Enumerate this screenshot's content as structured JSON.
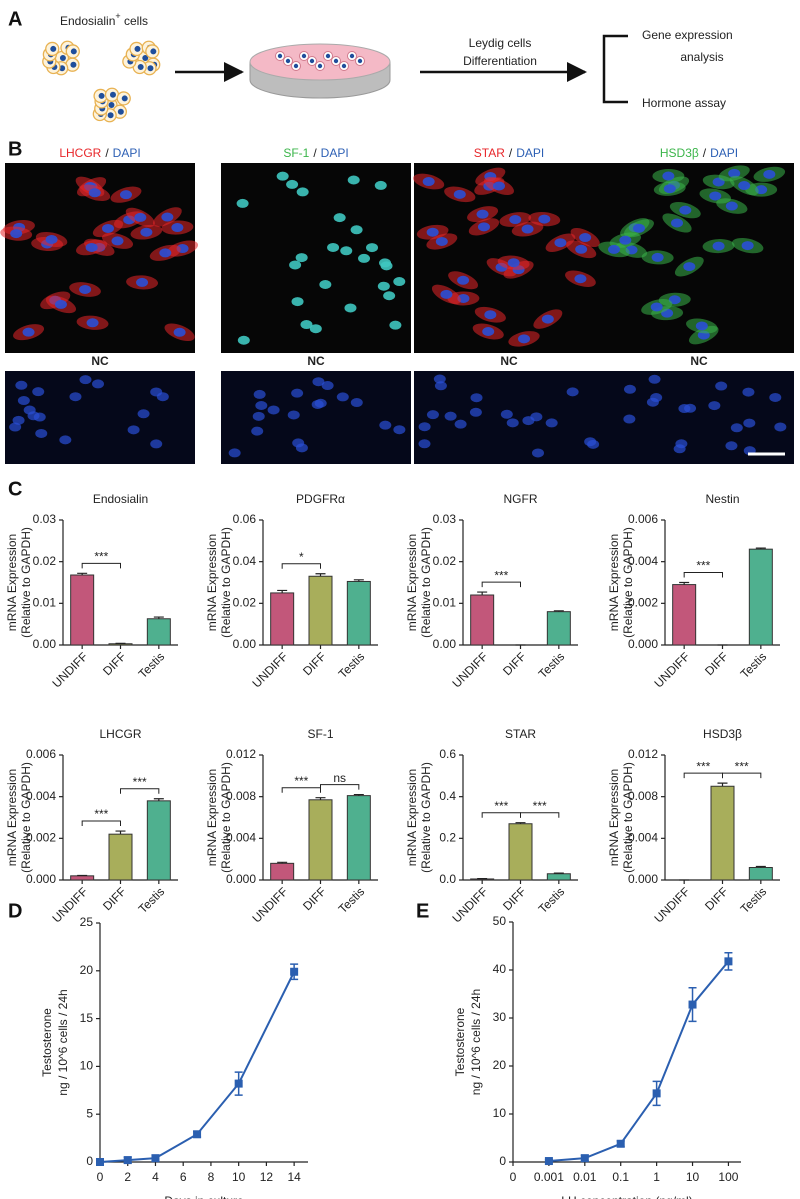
{
  "panel_labels": [
    "A",
    "B",
    "C",
    "D",
    "E"
  ],
  "diagram": {
    "source": {
      "text": "Endosialin",
      "sup": "+",
      "rest": " cells"
    },
    "arrow_label": [
      "Leydig cells",
      "Differentiation"
    ],
    "outputs": [
      [
        "Gene expression",
        "analysis"
      ],
      [
        "Hormone assay"
      ]
    ]
  },
  "images": {
    "separator": "/",
    "stain": {
      "name": "DAPI",
      "color": "#2c5fb4"
    },
    "markers": [
      {
        "name": "LHCGR",
        "color": "#e8262a"
      },
      {
        "name": "SF-1",
        "color": "#3bb54a"
      },
      {
        "name": "STAR",
        "color": "#e8262a"
      },
      {
        "name": "HSD3β",
        "color": "#3bb54a"
      }
    ],
    "control_labels": [
      "NC",
      "NC",
      "NC",
      "NC"
    ]
  },
  "chart_data": [
    {
      "type": "bar",
      "title": "Endosialin",
      "ylabel": [
        "mRNA Expression",
        "(Relative to GAPDH)"
      ],
      "categories": [
        "UNDIFF",
        "DIFF",
        "Testis"
      ],
      "colors": [
        "#c2577a",
        "#a8ae5b",
        "#4fb08f"
      ],
      "values": [
        0.0168,
        0.0003,
        0.0063
      ],
      "errors": [
        0.0004,
        0.0001,
        0.0004
      ],
      "ylim": [
        0,
        0.03
      ],
      "yticks": [
        {
          "value": 0,
          "label": "0.00"
        },
        0.01,
        0.02,
        0.03
      ],
      "significance": [
        {
          "from": 0,
          "to": 1,
          "label": "***"
        }
      ]
    },
    {
      "type": "bar",
      "title": "PDGFRα",
      "ylabel": [
        "mRNA Expression",
        "(Relative to GAPDH)"
      ],
      "categories": [
        "UNDIFF",
        "DIFF",
        "Testis"
      ],
      "colors": [
        "#c2577a",
        "#a8ae5b",
        "#4fb08f"
      ],
      "values": [
        0.025,
        0.033,
        0.0305
      ],
      "errors": [
        0.0012,
        0.0012,
        0.0008
      ],
      "ylim": [
        0,
        0.06
      ],
      "yticks": [
        {
          "value": 0,
          "label": "0.00"
        },
        0.02,
        0.04,
        0.06
      ],
      "significance": [
        {
          "from": 0,
          "to": 1,
          "label": "*"
        }
      ]
    },
    {
      "type": "bar",
      "title": "NGFR",
      "ylabel": [
        "mRNA Expression",
        "(Relative to GAPDH)"
      ],
      "categories": [
        "UNDIFF",
        "DIFF",
        "Testis"
      ],
      "colors": [
        "#c2577a",
        "#a8ae5b",
        "#4fb08f"
      ],
      "values": [
        0.012,
        0,
        0.008
      ],
      "errors": [
        0.0007,
        0,
        0.0002
      ],
      "ylim": [
        0,
        0.03
      ],
      "yticks": [
        {
          "value": 0,
          "label": "0.00"
        },
        0.01,
        0.02,
        0.03
      ],
      "significance": [
        {
          "from": 0,
          "to": 1,
          "label": "***"
        }
      ]
    },
    {
      "type": "bar",
      "title": "Nestin",
      "ylabel": [
        "mRNA Expression",
        "(Relative to GAPDH)"
      ],
      "categories": [
        "UNDIFF",
        "DIFF",
        "Testis"
      ],
      "colors": [
        "#c2577a",
        "#a8ae5b",
        "#4fb08f"
      ],
      "values": [
        0.0029,
        0,
        0.0046
      ],
      "errors": [
        0.0001,
        0,
        5e-05
      ],
      "ylim": [
        0,
        0.006
      ],
      "yticks": [
        {
          "value": 0,
          "label": "0.000"
        },
        0.002,
        0.004,
        0.006
      ],
      "significance": [
        {
          "from": 0,
          "to": 1,
          "label": "***"
        }
      ]
    },
    {
      "type": "bar",
      "title": "LHCGR",
      "ylabel": [
        "mRNA Expression",
        "(Relative to GAPDH)"
      ],
      "categories": [
        "UNDIFF",
        "DIFF",
        "Testis"
      ],
      "colors": [
        "#c2577a",
        "#a8ae5b",
        "#4fb08f"
      ],
      "values": [
        0.0002,
        0.0022,
        0.0038
      ],
      "errors": [
        2e-05,
        0.00015,
        0.0001
      ],
      "ylim": [
        0,
        0.006
      ],
      "yticks": [
        {
          "value": 0,
          "label": "0.000"
        },
        0.002,
        0.004,
        0.006
      ],
      "significance": [
        {
          "from": 0,
          "to": 1,
          "label": "***"
        },
        {
          "from": 1,
          "to": 2,
          "label": "***"
        }
      ]
    },
    {
      "type": "bar",
      "title": "SF-1",
      "ylabel": [
        "mRNA Expression",
        "(Relative to GAPDH)"
      ],
      "categories": [
        "UNDIFF",
        "DIFF",
        "Testis"
      ],
      "colors": [
        "#c2577a",
        "#a8ae5b",
        "#4fb08f"
      ],
      "values": [
        0.0016,
        0.0077,
        0.0081
      ],
      "errors": [
        0.0001,
        0.0002,
        0.0001
      ],
      "ylim": [
        0,
        0.012
      ],
      "yticks": [
        {
          "value": 0,
          "label": "0.000"
        },
        0.004,
        0.008,
        0.012
      ],
      "significance": [
        {
          "from": 0,
          "to": 1,
          "label": "***"
        },
        {
          "from": 1,
          "to": 2,
          "label": "ns"
        }
      ]
    },
    {
      "type": "bar",
      "title": "STAR",
      "ylabel": [
        "mRNA Expression",
        "(Relative to GAPDH)"
      ],
      "categories": [
        "UNDIFF",
        "DIFF",
        "Testis"
      ],
      "colors": [
        "#c2577a",
        "#a8ae5b",
        "#4fb08f"
      ],
      "values": [
        0.005,
        0.27,
        0.03
      ],
      "errors": [
        0.002,
        0.005,
        0.003
      ],
      "ylim": [
        0,
        0.6
      ],
      "yticks": [
        {
          "value": 0,
          "label": "0.0"
        },
        0.2,
        0.4,
        0.6
      ],
      "significance": [
        {
          "from": 0,
          "to": 1,
          "label": "***"
        },
        {
          "from": 1,
          "to": 2,
          "label": "***"
        }
      ]
    },
    {
      "type": "bar",
      "title": "HSD3β",
      "ylabel": [
        "mRNA Expression",
        "(Relative to GAPDH)"
      ],
      "categories": [
        "UNDIFF",
        "DIFF",
        "Testis"
      ],
      "colors": [
        "#c2577a",
        "#a8ae5b",
        "#4fb08f"
      ],
      "values": [
        0,
        0.009,
        0.0012
      ],
      "errors": [
        0,
        0.0003,
        0.0001
      ],
      "ylim": [
        0,
        0.012
      ],
      "yticks": [
        {
          "value": 0,
          "label": "0.000"
        },
        0.004,
        0.008,
        0.012
      ],
      "significance": [
        {
          "from": 0,
          "to": 1,
          "label": "***"
        },
        {
          "from": 1,
          "to": 2,
          "label": "***"
        }
      ]
    },
    {
      "type": "line",
      "xlabel": "Days in culture",
      "ylabel": [
        "Testosterone",
        "ng / 10^6 cells / 24h"
      ],
      "color": "#2b5fb0",
      "x": [
        0,
        2,
        4,
        7,
        10,
        14
      ],
      "values": [
        0,
        0.2,
        0.4,
        2.9,
        8.2,
        19.9
      ],
      "errors": [
        0.1,
        0.3,
        0.3,
        0.3,
        1.2,
        0.8
      ],
      "xlim": [
        0,
        15
      ],
      "xticks": [
        0,
        2,
        4,
        6,
        8,
        10,
        12,
        14
      ],
      "ylim": [
        0,
        25
      ],
      "yticks": [
        0,
        5,
        10,
        15,
        20,
        25
      ]
    },
    {
      "type": "line",
      "xlabel": "LH concentration (ng/ml)",
      "ylabel": [
        "Testosterone",
        "ng / 10^6 cells / 24h"
      ],
      "color": "#2b5fb0",
      "categories": [
        "0",
        "0.001",
        "0.01",
        "0.1",
        "1",
        "10",
        "100"
      ],
      "values": [
        null,
        0.2,
        0.8,
        3.8,
        14.3,
        32.8,
        41.8
      ],
      "errors": [
        null,
        0.3,
        0.6,
        0.6,
        2.5,
        3.5,
        1.8
      ],
      "ylim": [
        0,
        50
      ],
      "yticks": [
        0,
        10,
        20,
        30,
        40,
        50
      ]
    }
  ]
}
